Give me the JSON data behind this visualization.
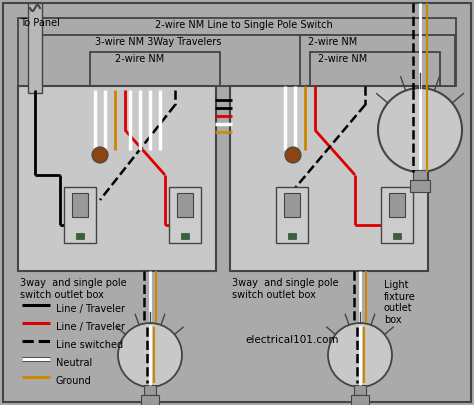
{
  "bg_color": "#aaaaaa",
  "fig_w": 4.74,
  "fig_h": 4.05,
  "dpi": 100,
  "legend": [
    {
      "label": "Line / Traveler",
      "color": "#000000",
      "linestyle": "solid"
    },
    {
      "label": "Line / Traveler",
      "color": "#dd0000",
      "linestyle": "solid"
    },
    {
      "label": "Line switched",
      "color": "#000000",
      "linestyle": "dashed"
    },
    {
      "label": "Neutral",
      "color": "#ffffff",
      "linestyle": "solid"
    },
    {
      "label": "Ground",
      "color": "#cc8800",
      "linestyle": "solid"
    }
  ]
}
